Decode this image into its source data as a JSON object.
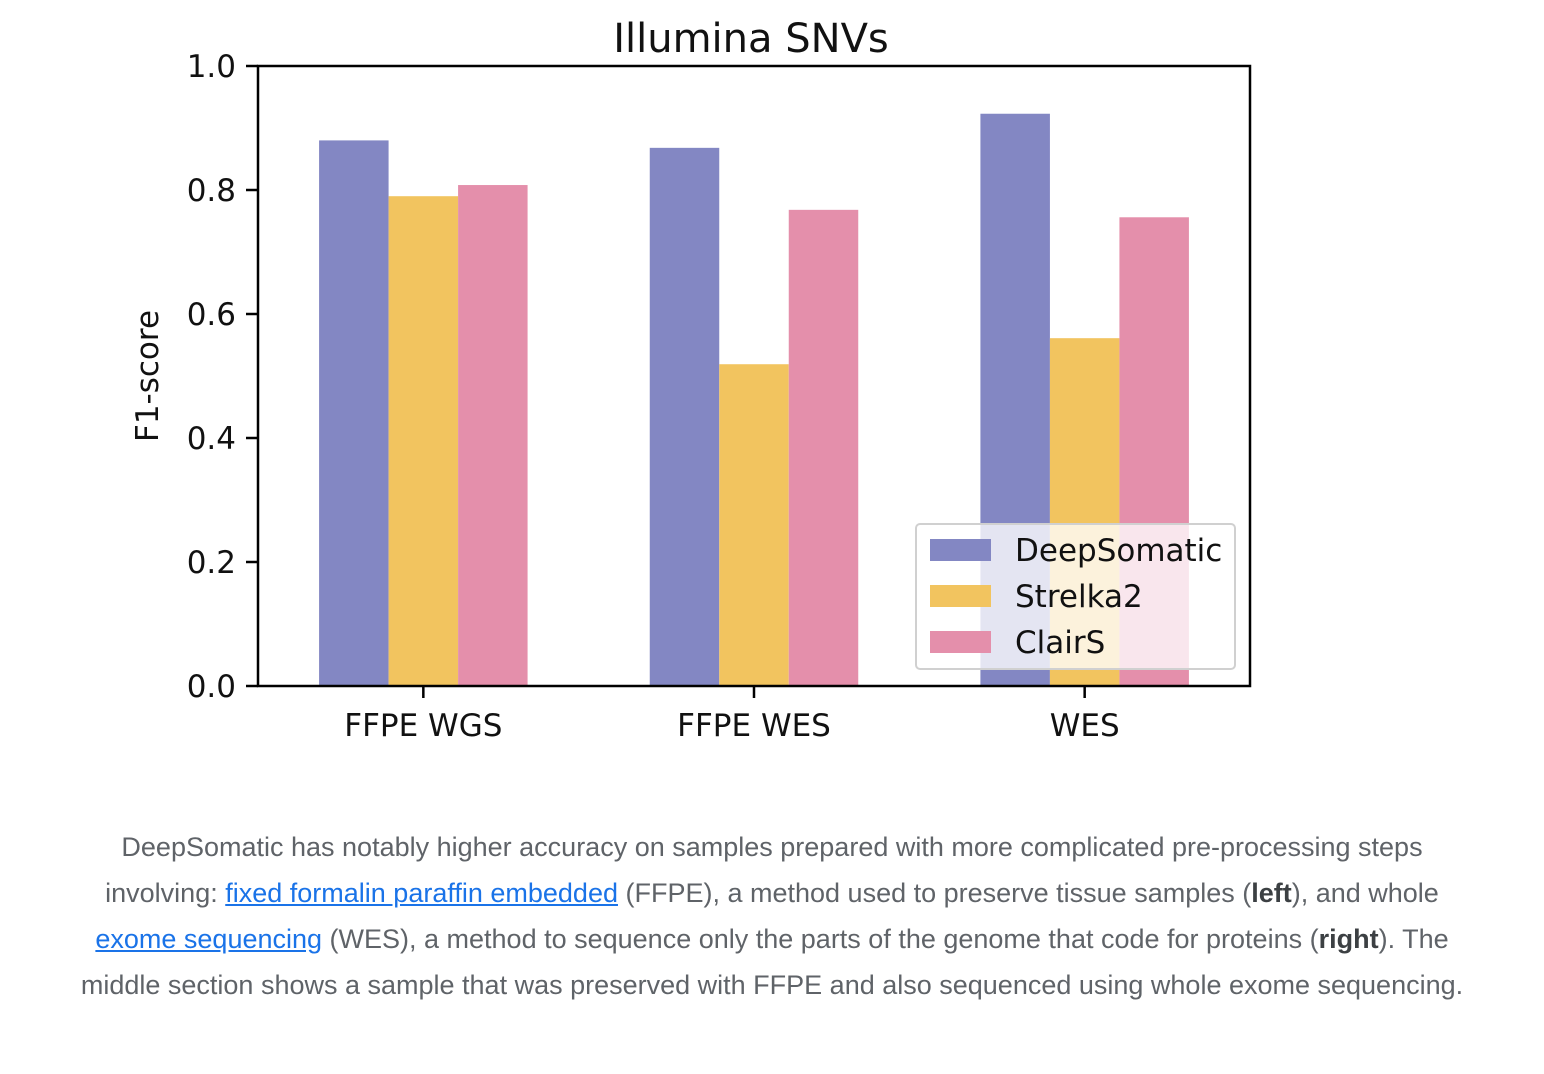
{
  "chart_data": {
    "type": "bar",
    "title": "Illumina SNVs",
    "xlabel": "",
    "ylabel": "F1-score",
    "ylim": [
      0,
      1.0
    ],
    "yticks": [
      "0.0",
      "0.2",
      "0.4",
      "0.6",
      "0.8",
      "1.0"
    ],
    "categories": [
      "FFPE WGS",
      "FFPE WES",
      "WES"
    ],
    "series": [
      {
        "name": "DeepSomatic",
        "color": "#8387c3",
        "values": [
          0.88,
          0.868,
          0.923
        ]
      },
      {
        "name": "Strelka2",
        "color": "#f2c45f",
        "values": [
          0.79,
          0.519,
          0.561
        ]
      },
      {
        "name": "ClairS",
        "color": "#e48fab",
        "values": [
          0.808,
          0.768,
          0.756
        ]
      }
    ],
    "legend_position": "lower-right",
    "grid": false
  },
  "caption": {
    "part1": "DeepSomatic has notably higher accuracy on samples prepared with more complicated pre-processing steps involving: ",
    "link1": "fixed formalin paraffin embedded",
    "part2": " (FFPE), a method used to preserve tissue samples (",
    "bold1": "left",
    "part3": "), and whole ",
    "link2": "exome sequencing",
    "part4": " (WES), a method to sequence only the parts of the genome that code for proteins (",
    "bold2": "right",
    "part5": "). The middle section shows a sample that was preserved with FFPE and also sequenced using whole exome sequencing."
  }
}
